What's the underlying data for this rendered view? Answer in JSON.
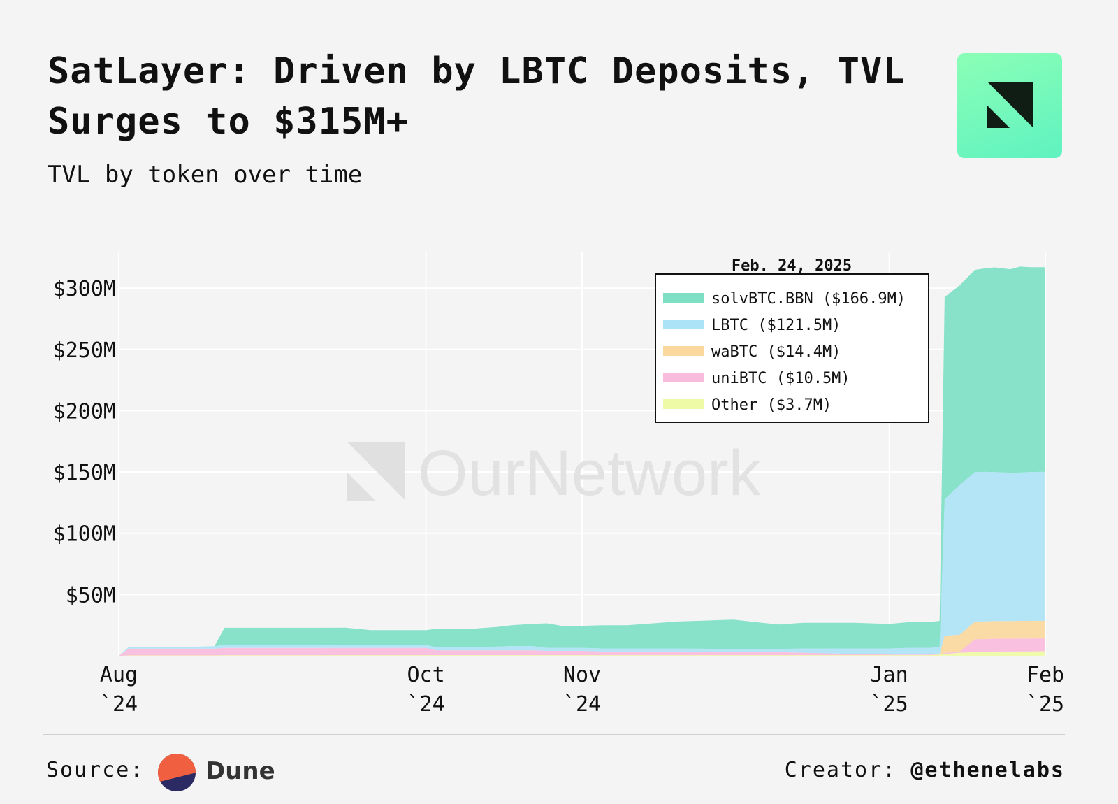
{
  "header": {
    "title_bold": "SatLayer:",
    "title_rest": " Driven by LBTC Deposits, TVL Surges to $315M+",
    "subtitle": "TVL by token over time"
  },
  "watermark": "OurNetwork",
  "footer": {
    "source_label": "Source:",
    "source_name": "Dune",
    "creator_label": "Creator:",
    "creator_handle": "@ethenelabs"
  },
  "chart_data": {
    "type": "area",
    "stacked": true,
    "legend_title": "Feb. 24, 2025",
    "legend_position": "top-right",
    "grid": true,
    "y_ticks": [
      {
        "value": 300000000,
        "label": "$300M"
      },
      {
        "value": 250000000,
        "label": "$250M"
      },
      {
        "value": 200000000,
        "label": "$200M"
      },
      {
        "value": 150000000,
        "label": "$150M"
      },
      {
        "value": 100000000,
        "label": "$100M"
      },
      {
        "value": 50000000,
        "label": "$50M"
      }
    ],
    "x_ticks": [
      {
        "date": "2024-08-01",
        "line1": "Aug",
        "line2": "`24"
      },
      {
        "date": "2024-10-01",
        "line1": "Oct",
        "line2": "`24"
      },
      {
        "date": "2024-11-01",
        "line1": "Nov",
        "line2": "`24"
      },
      {
        "date": "2025-01-01",
        "line1": "Jan",
        "line2": "`25"
      },
      {
        "date": "2025-02-01",
        "line1": "Feb",
        "line2": "`25"
      }
    ],
    "xlim": [
      "2024-08-01",
      "2025-02-01"
    ],
    "ylim": [
      0,
      340000000
    ],
    "x": [
      "2024-08-01",
      "2024-08-03",
      "2024-08-15",
      "2024-08-20",
      "2024-08-22",
      "2024-09-10",
      "2024-09-15",
      "2024-09-20",
      "2024-10-01",
      "2024-10-03",
      "2024-10-10",
      "2024-10-15",
      "2024-10-18",
      "2024-10-22",
      "2024-10-25",
      "2024-10-28",
      "2024-11-01",
      "2024-11-05",
      "2024-11-10",
      "2024-11-20",
      "2024-12-01",
      "2024-12-10",
      "2024-12-15",
      "2024-12-20",
      "2024-12-25",
      "2025-01-01",
      "2025-01-05",
      "2025-01-09",
      "2025-01-11",
      "2025-01-12",
      "2025-01-15",
      "2025-01-18",
      "2025-01-20",
      "2025-01-22",
      "2025-01-25",
      "2025-01-27",
      "2025-01-29",
      "2025-01-31",
      "2025-02-01"
    ],
    "series": [
      {
        "name": "Other",
        "legend_value": "$3.7M",
        "color": "#eefaa6",
        "values": [
          0,
          0.3,
          0.3,
          0.3,
          0.4,
          0.4,
          0.5,
          0.5,
          0.5,
          0.5,
          0.5,
          0.5,
          0.5,
          0.5,
          0.5,
          0.5,
          0.5,
          0.5,
          0.5,
          0.5,
          0.5,
          0.5,
          0.5,
          0.5,
          0.5,
          0.5,
          0.5,
          0.5,
          1.0,
          1.5,
          2.5,
          3.0,
          3.2,
          3.5,
          3.5,
          3.6,
          3.6,
          3.7,
          3.7
        ]
      },
      {
        "name": "uniBTC",
        "legend_value": "$10.5M",
        "color": "#f9bcdc",
        "values": [
          0,
          5.5,
          5.5,
          5.5,
          6.0,
          6.0,
          6.0,
          6.0,
          6.0,
          4.0,
          4.0,
          4.0,
          4.0,
          4.0,
          3.5,
          3.5,
          3.5,
          3.0,
          3.0,
          3.0,
          2.5,
          2.5,
          2.0,
          1.5,
          1.0,
          0.5,
          0.5,
          0.5,
          0.5,
          0.8,
          0.8,
          10.5,
          10.5,
          10.5,
          10.5,
          10.5,
          10.5,
          10.5,
          10.5
        ]
      },
      {
        "name": "waBTC",
        "legend_value": "$14.4M",
        "color": "#fad89e",
        "values": [
          0,
          0,
          0,
          0,
          0,
          0,
          0,
          0,
          0,
          0,
          0,
          0,
          0,
          0,
          0,
          0,
          0,
          0,
          0,
          0,
          0,
          0,
          0,
          0,
          0,
          0,
          0,
          0,
          0,
          14.0,
          14.0,
          14.4,
          14.4,
          14.4,
          14.4,
          14.4,
          14.4,
          14.4,
          14.4
        ]
      },
      {
        "name": "LBTC",
        "legend_value": "$121.5M",
        "color": "#ade3f6",
        "values": [
          0,
          1.5,
          1.5,
          2.0,
          2.5,
          2.5,
          2.5,
          2.5,
          2.5,
          2.5,
          2.5,
          3.0,
          3.5,
          3.5,
          2.5,
          2.5,
          2.5,
          2.5,
          2.5,
          2.5,
          2.5,
          2.5,
          3.5,
          4.0,
          4.5,
          5.0,
          5.5,
          5.5,
          6.0,
          111.5,
          122.0,
          122.0,
          122.0,
          121.5,
          121.0,
          121.0,
          121.5,
          121.5,
          121.5
        ]
      },
      {
        "name": "solvBTC.BBN",
        "legend_value": "$166.9M",
        "color": "#7de0c4",
        "values": [
          0,
          0,
          0,
          0,
          14.0,
          14.0,
          14.0,
          12.0,
          12.0,
          15.0,
          15.0,
          16.0,
          17.0,
          18.0,
          20.0,
          18.0,
          18.0,
          19.0,
          19.0,
          22.0,
          24.0,
          20.0,
          21.0,
          21.0,
          21.0,
          20.0,
          21.0,
          21.0,
          21.0,
          165.0,
          163.0,
          165.0,
          166.0,
          167.0,
          166.0,
          168.0,
          167.0,
          166.9,
          166.9
        ]
      }
    ]
  }
}
